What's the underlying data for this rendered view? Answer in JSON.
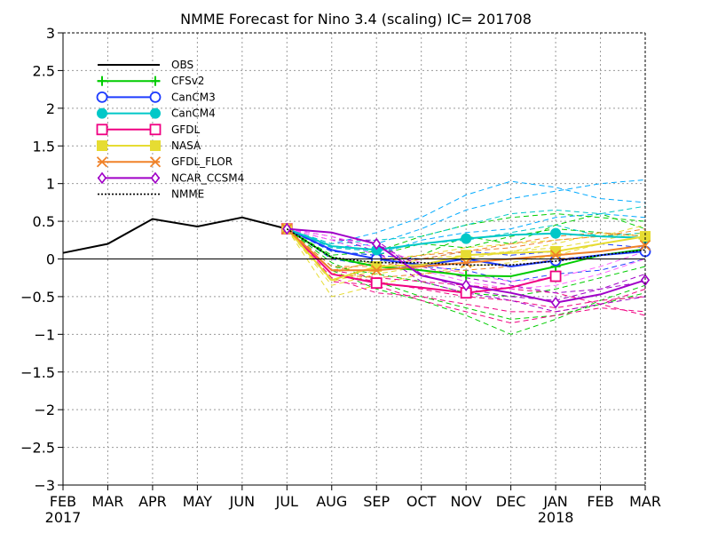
{
  "chart_data": {
    "type": "line",
    "title": "NMME Forecast for Nino 3.4 (scaling) IC= 201708",
    "xlabel": "",
    "ylabel": "",
    "categories": [
      "FEB",
      "MAR",
      "APR",
      "MAY",
      "JUN",
      "JUL",
      "AUG",
      "SEP",
      "OCT",
      "NOV",
      "DEC",
      "JAN",
      "FEB",
      "MAR"
    ],
    "year_labels": [
      {
        "index": 0,
        "label": "2017"
      },
      {
        "index": 11,
        "label": "2018"
      }
    ],
    "ylim": [
      -3,
      3
    ],
    "yticks": [
      3,
      2.5,
      2,
      1.5,
      1,
      0.5,
      0,
      -0.5,
      -1,
      -1.5,
      -2,
      -2.5,
      -3
    ],
    "ytick_labels": [
      "3",
      "2.5",
      "2",
      "1.5",
      "1",
      "0.5",
      "0",
      "−0.5",
      "−1",
      "−1.5",
      "−2",
      "−2.5",
      "−3"
    ],
    "grid": true,
    "legend_position": "top-left",
    "series": [
      {
        "name": "OBS",
        "color": "#000000",
        "style": "solid",
        "marker": "none",
        "values": [
          0.08,
          0.2,
          0.53,
          0.43,
          0.55,
          0.4,
          null,
          null,
          null,
          null,
          null,
          null,
          null,
          null
        ]
      },
      {
        "name": "CFSv2",
        "color": "#00cc00",
        "style": "solid",
        "marker": "plus",
        "values": [
          null,
          null,
          null,
          null,
          null,
          0.4,
          0.02,
          -0.1,
          -0.15,
          -0.22,
          -0.23,
          -0.1,
          0.05,
          0.13
        ]
      },
      {
        "name": "CanCM3",
        "color": "#1e3cff",
        "style": "solid",
        "marker": "circle-open",
        "values": [
          null,
          null,
          null,
          null,
          null,
          0.4,
          0.12,
          0.0,
          -0.08,
          0.0,
          -0.1,
          -0.02,
          0.05,
          0.1
        ]
      },
      {
        "name": "CanCM4",
        "color": "#00c8c8",
        "style": "solid",
        "marker": "circle-filled",
        "values": [
          null,
          null,
          null,
          null,
          null,
          0.4,
          0.17,
          0.12,
          0.2,
          0.27,
          0.32,
          0.34,
          0.3,
          0.28
        ]
      },
      {
        "name": "GFDL",
        "color": "#f00082",
        "style": "solid",
        "marker": "square-open",
        "values": [
          null,
          null,
          null,
          null,
          null,
          0.4,
          -0.2,
          -0.32,
          -0.38,
          -0.45,
          -0.38,
          -0.23,
          null,
          null
        ]
      },
      {
        "name": "NASA",
        "color": "#e6dc32",
        "style": "solid",
        "marker": "square-filled",
        "values": [
          null,
          null,
          null,
          null,
          null,
          0.4,
          -0.28,
          -0.1,
          -0.08,
          0.05,
          0.08,
          0.1,
          0.2,
          0.3
        ]
      },
      {
        "name": "GFDL_FLOR",
        "color": "#f08228",
        "style": "solid",
        "marker": "x",
        "values": [
          null,
          null,
          null,
          null,
          null,
          0.4,
          -0.15,
          -0.15,
          -0.1,
          -0.05,
          0.0,
          0.05,
          0.1,
          0.18
        ]
      },
      {
        "name": "NCAR_CCSM4",
        "color": "#a000c8",
        "style": "solid",
        "marker": "diamond-open",
        "values": [
          null,
          null,
          null,
          null,
          null,
          0.4,
          0.35,
          0.2,
          -0.22,
          -0.35,
          -0.45,
          -0.58,
          -0.47,
          -0.28
        ]
      },
      {
        "name": "NMME",
        "color": "#000000",
        "style": "dotted",
        "marker": "none",
        "values": [
          null,
          null,
          null,
          null,
          null,
          0.4,
          0.02,
          -0.05,
          -0.05,
          -0.08,
          -0.08,
          -0.03,
          0.05,
          0.12
        ]
      }
    ],
    "members": [
      {
        "color": "#00cc00",
        "values": [
          0.4,
          -0.05,
          -0.3,
          -0.5,
          -0.65,
          -0.8,
          -0.75,
          -0.6,
          -0.45
        ]
      },
      {
        "color": "#00cc00",
        "values": [
          0.4,
          0.05,
          0.1,
          0.3,
          0.45,
          0.55,
          0.6,
          0.55,
          0.5
        ]
      },
      {
        "color": "#00cc00",
        "values": [
          0.4,
          -0.15,
          -0.4,
          -0.55,
          -0.75,
          -1.0,
          -0.8,
          -0.55,
          -0.35
        ]
      },
      {
        "color": "#00cc00",
        "values": [
          0.4,
          0.1,
          0.05,
          0.2,
          0.15,
          0.3,
          0.4,
          0.35,
          0.3
        ]
      },
      {
        "color": "#00cc00",
        "values": [
          0.4,
          -0.1,
          -0.2,
          -0.3,
          -0.45,
          -0.5,
          -0.4,
          -0.25,
          -0.1
        ]
      },
      {
        "color": "#00cc00",
        "values": [
          0.4,
          0.0,
          -0.05,
          0.05,
          0.3,
          0.2,
          0.45,
          0.6,
          0.4
        ]
      },
      {
        "color": "#00aaff",
        "values": [
          0.4,
          0.2,
          0.35,
          0.55,
          0.85,
          1.03,
          0.95,
          0.8,
          0.75
        ]
      },
      {
        "color": "#00aaff",
        "values": [
          0.4,
          0.15,
          0.2,
          0.4,
          0.65,
          0.8,
          0.9,
          1.0,
          1.05
        ]
      },
      {
        "color": "#00aaff",
        "values": [
          0.4,
          0.1,
          0.05,
          0.25,
          0.35,
          0.4,
          0.55,
          0.6,
          0.55
        ]
      },
      {
        "color": "#00c8c8",
        "values": [
          0.4,
          0.2,
          0.25,
          0.3,
          0.45,
          0.6,
          0.65,
          0.6,
          0.7
        ]
      },
      {
        "color": "#00c8c8",
        "values": [
          0.4,
          0.15,
          0.1,
          0.2,
          0.25,
          0.35,
          0.45,
          0.3,
          0.35
        ]
      },
      {
        "color": "#1e3cff",
        "values": [
          0.4,
          0.0,
          -0.1,
          -0.1,
          -0.15,
          -0.3,
          -0.2,
          -0.15,
          0.0
        ]
      },
      {
        "color": "#1e3cff",
        "values": [
          0.4,
          0.1,
          0.05,
          0.0,
          0.1,
          0.05,
          0.1,
          0.2,
          0.15
        ]
      },
      {
        "color": "#f00082",
        "values": [
          0.4,
          -0.25,
          -0.45,
          -0.5,
          -0.6,
          -0.7,
          -0.7,
          -0.6,
          -0.4
        ]
      },
      {
        "color": "#f00082",
        "values": [
          0.4,
          -0.2,
          -0.3,
          -0.4,
          -0.5,
          -0.55,
          -0.65,
          -0.55,
          -0.5
        ]
      },
      {
        "color": "#f00082",
        "values": [
          0.4,
          -0.3,
          -0.35,
          -0.55,
          -0.7,
          -0.85,
          -0.75,
          -0.65,
          -0.7
        ]
      },
      {
        "color": "#f00082",
        "values": [
          0.4,
          -0.15,
          -0.25,
          -0.3,
          -0.35,
          -0.4,
          -0.45,
          -0.6,
          -0.75
        ]
      },
      {
        "color": "#e6dc32",
        "values": [
          0.4,
          -0.35,
          -0.2,
          -0.1,
          0.0,
          0.1,
          0.15,
          0.25,
          0.35
        ]
      },
      {
        "color": "#e6dc32",
        "values": [
          0.4,
          -0.5,
          -0.35,
          -0.2,
          -0.1,
          -0.05,
          0.05,
          0.2,
          0.3
        ]
      },
      {
        "color": "#e6dc32",
        "values": [
          0.4,
          -0.2,
          0.0,
          0.05,
          0.15,
          0.2,
          0.25,
          0.3,
          0.45
        ]
      },
      {
        "color": "#e6dc32",
        "values": [
          0.4,
          -0.3,
          -0.15,
          0.0,
          0.05,
          0.1,
          0.2,
          0.35,
          0.25
        ]
      },
      {
        "color": "#f08228",
        "values": [
          0.4,
          -0.1,
          -0.1,
          0.0,
          0.1,
          0.15,
          0.25,
          0.3,
          0.4
        ]
      },
      {
        "color": "#f08228",
        "values": [
          0.4,
          -0.2,
          -0.25,
          -0.2,
          -0.15,
          -0.1,
          0.0,
          0.05,
          0.1
        ]
      },
      {
        "color": "#f08228",
        "values": [
          0.4,
          -0.15,
          -0.05,
          0.05,
          0.1,
          0.2,
          0.3,
          0.35,
          0.3
        ]
      },
      {
        "color": "#a000c8",
        "values": [
          0.4,
          0.3,
          0.1,
          -0.3,
          -0.45,
          -0.55,
          -0.7,
          -0.6,
          -0.5
        ]
      },
      {
        "color": "#a000c8",
        "values": [
          0.4,
          0.35,
          0.2,
          -0.1,
          -0.25,
          -0.35,
          -0.45,
          -0.4,
          -0.2
        ]
      },
      {
        "color": "#a000c8",
        "values": [
          0.4,
          0.25,
          0.25,
          -0.2,
          -0.4,
          -0.5,
          -0.55,
          -0.4,
          -0.3
        ]
      },
      {
        "color": "#ff64ff",
        "values": [
          0.4,
          0.3,
          0.15,
          -0.05,
          -0.2,
          -0.3,
          -0.25,
          -0.1,
          0.1
        ]
      },
      {
        "color": "#ff64ff",
        "values": [
          0.4,
          0.25,
          0.05,
          -0.15,
          -0.3,
          -0.4,
          -0.35,
          -0.2,
          0.0
        ]
      }
    ]
  }
}
